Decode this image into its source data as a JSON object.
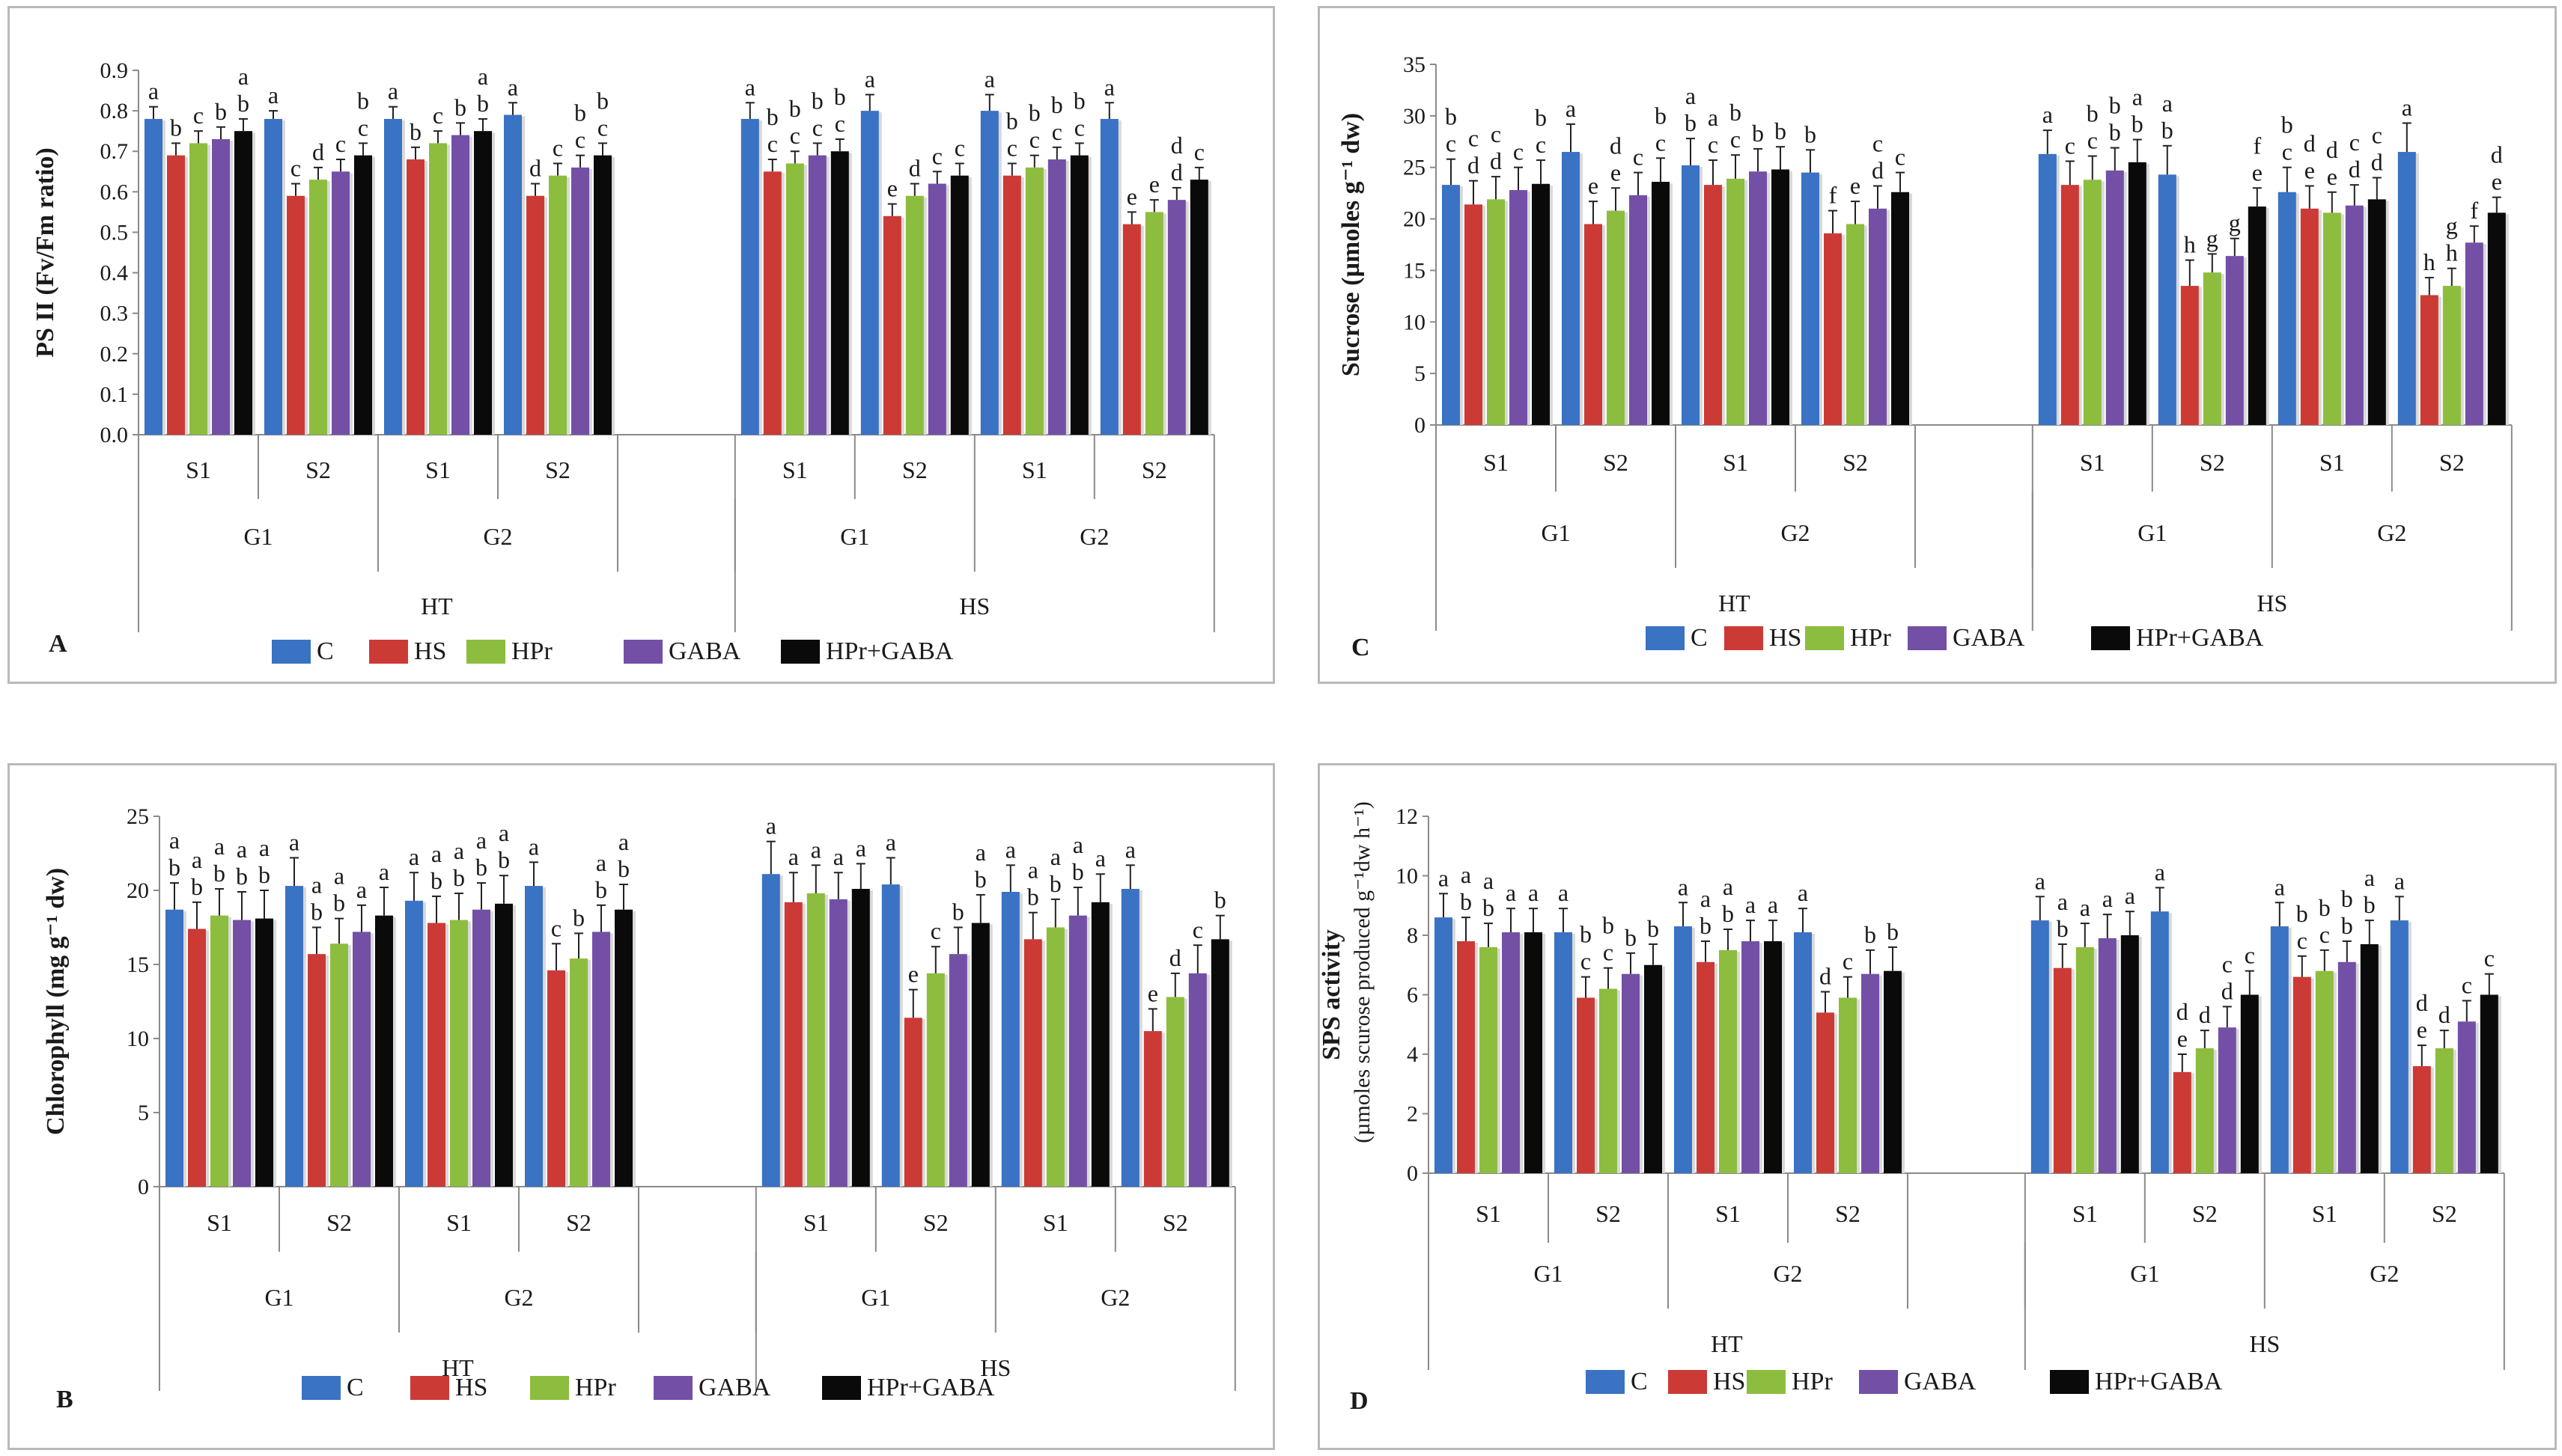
{
  "legend": {
    "labels": [
      "C",
      "HS",
      "HPr",
      "GABA",
      "HPr+GABA"
    ],
    "colors": [
      "#3a72c4",
      "#cc3a36",
      "#8dbd3e",
      "#7350a6",
      "#0a0a0a"
    ]
  },
  "chart_data": [
    {
      "type": "bar",
      "panel_letter": "A",
      "ylabel": "PS II  (Fv/Fm ratio)",
      "ylim": [
        0,
        0.9
      ],
      "ystep": 0.1,
      "ydec": 1,
      "series_names": [
        "C",
        "HS",
        "HPr",
        "GABA",
        "HPr+GABA"
      ],
      "treatments": [
        "HT",
        "HS"
      ],
      "genotypes": [
        "G1",
        "G2",
        "G1",
        "G2"
      ],
      "stages": [
        "S1",
        "S2",
        "S1",
        "S2",
        "S1",
        "S2",
        "S1",
        "S2"
      ],
      "groups": [
        {
          "values": [
            0.78,
            0.69,
            0.72,
            0.73,
            0.75
          ],
          "errors": [
            0.03,
            0.03,
            0.03,
            0.03,
            0.03
          ],
          "letters": [
            "a",
            "b",
            "c",
            "b",
            "b"
          ],
          "letters2": [
            "",
            "",
            "",
            "",
            "a"
          ]
        },
        {
          "values": [
            0.78,
            0.59,
            0.63,
            0.65,
            0.69
          ],
          "errors": [
            0.02,
            0.03,
            0.03,
            0.03,
            0.03
          ],
          "letters": [
            "a",
            "c",
            "d",
            "c",
            "c"
          ],
          "letters2": [
            "",
            "",
            "",
            "",
            "b"
          ]
        },
        {
          "values": [
            0.78,
            0.68,
            0.72,
            0.74,
            0.75
          ],
          "errors": [
            0.03,
            0.03,
            0.03,
            0.03,
            0.03
          ],
          "letters": [
            "a",
            "b",
            "c",
            "b",
            "b"
          ],
          "letters2": [
            "",
            "",
            "",
            "",
            "a"
          ]
        },
        {
          "values": [
            0.79,
            0.59,
            0.64,
            0.66,
            0.69
          ],
          "errors": [
            0.03,
            0.03,
            0.03,
            0.03,
            0.03
          ],
          "letters": [
            "a",
            "d",
            "c",
            "c",
            "c"
          ],
          "letters2": [
            "",
            "",
            "",
            "b",
            "b"
          ]
        },
        {
          "values": [
            0.78,
            0.65,
            0.67,
            0.69,
            0.7
          ],
          "errors": [
            0.04,
            0.03,
            0.03,
            0.03,
            0.03
          ],
          "letters": [
            "a",
            "c",
            "c",
            "c",
            "c"
          ],
          "letters2": [
            "",
            "b",
            "b",
            "b",
            "b"
          ]
        },
        {
          "values": [
            0.8,
            0.54,
            0.59,
            0.62,
            0.64
          ],
          "errors": [
            0.04,
            0.03,
            0.03,
            0.03,
            0.03
          ],
          "letters": [
            "a",
            "e",
            "d",
            "c",
            "c"
          ],
          "letters2": [
            "",
            "",
            "",
            "",
            ""
          ]
        },
        {
          "values": [
            0.8,
            0.64,
            0.66,
            0.68,
            0.69
          ],
          "errors": [
            0.04,
            0.03,
            0.03,
            0.03,
            0.03
          ],
          "letters": [
            "a",
            "c",
            "c",
            "c",
            "c"
          ],
          "letters2": [
            "",
            "b",
            "b",
            "b",
            "b"
          ]
        },
        {
          "values": [
            0.78,
            0.52,
            0.55,
            0.58,
            0.63
          ],
          "errors": [
            0.04,
            0.03,
            0.03,
            0.03,
            0.03
          ],
          "letters": [
            "a",
            "e",
            "e",
            "d",
            "c"
          ],
          "letters2": [
            "",
            "",
            "",
            "d",
            ""
          ]
        }
      ]
    },
    {
      "type": "bar",
      "panel_letter": "C",
      "ylabel": "Sucrose (µmoles g⁻¹ dw)",
      "ylim": [
        0,
        35
      ],
      "ystep": 5,
      "ydec": 0,
      "series_names": [
        "C",
        "HS",
        "HPr",
        "GABA",
        "HPr+GABA"
      ],
      "treatments": [
        "HT",
        "HS"
      ],
      "genotypes": [
        "G1",
        "G2",
        "G1",
        "G2"
      ],
      "stages": [
        "S1",
        "S2",
        "S1",
        "S2",
        "S1",
        "S2",
        "S1",
        "S2"
      ],
      "groups": [
        {
          "values": [
            23.3,
            21.4,
            21.9,
            22.8,
            23.4
          ],
          "errors": [
            2.5,
            2.3,
            2.2,
            2.2,
            2.3
          ],
          "letters": [
            "c",
            "d",
            "d",
            "c",
            "c"
          ],
          "letters2": [
            "b",
            "c",
            "c",
            "",
            "b"
          ]
        },
        {
          "values": [
            26.5,
            19.5,
            20.8,
            22.3,
            23.6
          ],
          "errors": [
            2.7,
            2.2,
            2.2,
            2.2,
            2.3
          ],
          "letters": [
            "a",
            "e",
            "e",
            "c",
            "c"
          ],
          "letters2": [
            "",
            "",
            "d",
            "",
            "b"
          ]
        },
        {
          "values": [
            25.2,
            23.3,
            23.9,
            24.6,
            24.8
          ],
          "errors": [
            2.6,
            2.4,
            2.3,
            2.2,
            2.2
          ],
          "letters": [
            "b",
            "c",
            "c",
            "b",
            "b"
          ],
          "letters2": [
            "a",
            "a",
            "b",
            "",
            ""
          ]
        },
        {
          "values": [
            24.5,
            18.6,
            19.5,
            21.0,
            22.6
          ],
          "errors": [
            2.2,
            2.2,
            2.2,
            2.2,
            1.9
          ],
          "letters": [
            "b",
            "f",
            "e",
            "d",
            "c"
          ],
          "letters2": [
            "",
            "",
            "",
            "c",
            ""
          ]
        },
        {
          "values": [
            26.3,
            23.3,
            23.8,
            24.7,
            25.5
          ],
          "errors": [
            2.3,
            2.3,
            2.3,
            2.2,
            2.2
          ],
          "letters": [
            "a",
            "c",
            "c",
            "b",
            "b"
          ],
          "letters2": [
            "",
            "",
            "b",
            "b",
            "a"
          ]
        },
        {
          "values": [
            24.3,
            13.5,
            14.8,
            16.4,
            21.2
          ],
          "errors": [
            2.8,
            2.5,
            1.8,
            1.7,
            1.8
          ],
          "letters": [
            "b",
            "h",
            "g",
            "g",
            "e"
          ],
          "letters2": [
            "a",
            "",
            "",
            "",
            "f"
          ]
        },
        {
          "values": [
            22.6,
            21.0,
            20.6,
            21.3,
            21.9
          ],
          "errors": [
            2.4,
            2.2,
            2.0,
            2.0,
            2.1
          ],
          "letters": [
            "c",
            "e",
            "e",
            "d",
            "d"
          ],
          "letters2": [
            "b",
            "d",
            "d",
            "c",
            "c"
          ]
        },
        {
          "values": [
            26.5,
            12.6,
            13.5,
            17.7,
            20.6
          ],
          "errors": [
            2.8,
            1.7,
            1.7,
            1.6,
            1.5
          ],
          "letters": [
            "a",
            "h",
            "h",
            "f",
            "e"
          ],
          "letters2": [
            "",
            "",
            "g",
            "",
            "d"
          ]
        }
      ]
    },
    {
      "type": "bar",
      "panel_letter": "B",
      "ylabel": "Chlorophyll (mg g⁻¹ dw)",
      "ylim": [
        0,
        25
      ],
      "ystep": 5,
      "ydec": 0,
      "series_names": [
        "C",
        "HS",
        "HPr",
        "GABA",
        "HPr+GABA"
      ],
      "treatments": [
        "HT",
        "HS"
      ],
      "genotypes": [
        "G1",
        "G2",
        "G1",
        "G2"
      ],
      "stages": [
        "S1",
        "S2",
        "S1",
        "S2",
        "S1",
        "S2",
        "S1",
        "S2"
      ],
      "groups": [
        {
          "values": [
            18.7,
            17.4,
            18.3,
            18.0,
            18.1
          ],
          "errors": [
            1.8,
            1.8,
            1.8,
            1.9,
            1.9
          ],
          "letters": [
            "b",
            "b",
            "b",
            "b",
            "b"
          ],
          "letters2": [
            "a",
            "a",
            "a",
            "a",
            "a"
          ]
        },
        {
          "values": [
            20.3,
            15.7,
            16.4,
            17.2,
            18.3
          ],
          "errors": [
            1.9,
            1.8,
            1.7,
            1.8,
            1.9
          ],
          "letters": [
            "a",
            "b",
            "b",
            "a",
            "a"
          ],
          "letters2": [
            "",
            "a",
            "a",
            "",
            ""
          ]
        },
        {
          "values": [
            19.3,
            17.8,
            18.0,
            18.7,
            19.1
          ],
          "errors": [
            1.9,
            1.8,
            1.8,
            1.8,
            1.9
          ],
          "letters": [
            "a",
            "b",
            "b",
            "b",
            "b"
          ],
          "letters2": [
            "",
            "a",
            "a",
            "a",
            "a"
          ]
        },
        {
          "values": [
            20.3,
            14.6,
            15.4,
            17.2,
            18.7
          ],
          "errors": [
            1.6,
            1.8,
            1.7,
            1.8,
            1.7
          ],
          "letters": [
            "a",
            "c",
            "b",
            "b",
            "b"
          ],
          "letters2": [
            "",
            "",
            "",
            "a",
            "a"
          ]
        },
        {
          "values": [
            21.1,
            19.2,
            19.8,
            19.4,
            20.1
          ],
          "errors": [
            2.2,
            2.0,
            1.9,
            1.8,
            1.7
          ],
          "letters": [
            "a",
            "a",
            "a",
            "a",
            "a"
          ],
          "letters2": [
            "",
            "",
            "",
            "",
            ""
          ]
        },
        {
          "values": [
            20.4,
            11.4,
            14.4,
            15.7,
            17.8
          ],
          "errors": [
            1.8,
            1.9,
            1.8,
            1.8,
            1.9
          ],
          "letters": [
            "a",
            "e",
            "c",
            "b",
            "b"
          ],
          "letters2": [
            "",
            "",
            "",
            "",
            "a"
          ]
        },
        {
          "values": [
            19.9,
            16.7,
            17.5,
            18.3,
            19.2
          ],
          "errors": [
            1.8,
            1.8,
            1.9,
            1.9,
            1.9
          ],
          "letters": [
            "a",
            "b",
            "b",
            "b",
            "a"
          ],
          "letters2": [
            "",
            "a",
            "a",
            "a",
            ""
          ]
        },
        {
          "values": [
            20.1,
            10.5,
            12.8,
            14.4,
            16.7
          ],
          "errors": [
            1.6,
            1.5,
            1.6,
            1.9,
            1.6
          ],
          "letters": [
            "a",
            "e",
            "d",
            "c",
            "b"
          ],
          "letters2": [
            "",
            "",
            "",
            "",
            ""
          ]
        }
      ]
    },
    {
      "type": "bar",
      "panel_letter": "D",
      "ylabel": "SPS activity",
      "ylabel2": "(µmoles  scurose  produced  g⁻¹dw h⁻¹)",
      "ylim": [
        0,
        12
      ],
      "ystep": 2,
      "ydec": 0,
      "series_names": [
        "C",
        "HS",
        "HPr",
        "GABA",
        "HPr+GABA"
      ],
      "treatments": [
        "HT",
        "HS"
      ],
      "genotypes": [
        "G1",
        "G2",
        "G1",
        "G2"
      ],
      "stages": [
        "S1",
        "S2",
        "S1",
        "S2",
        "S1",
        "S2",
        "S1",
        "S2"
      ],
      "groups": [
        {
          "values": [
            8.6,
            7.8,
            7.6,
            8.1,
            8.1
          ],
          "errors": [
            0.8,
            0.8,
            0.8,
            0.8,
            0.8
          ],
          "letters": [
            "a",
            "b",
            "b",
            "a",
            "a"
          ],
          "letters2": [
            "",
            "a",
            "a",
            "",
            ""
          ]
        },
        {
          "values": [
            8.1,
            5.9,
            6.2,
            6.7,
            7.0
          ],
          "errors": [
            0.8,
            0.7,
            0.7,
            0.7,
            0.7
          ],
          "letters": [
            "a",
            "c",
            "c",
            "b",
            "b"
          ],
          "letters2": [
            "",
            "b",
            "b",
            "",
            ""
          ]
        },
        {
          "values": [
            8.3,
            7.1,
            7.5,
            7.8,
            7.8
          ],
          "errors": [
            0.8,
            0.7,
            0.7,
            0.7,
            0.7
          ],
          "letters": [
            "a",
            "b",
            "b",
            "a",
            "a"
          ],
          "letters2": [
            "",
            "a",
            "a",
            "",
            ""
          ]
        },
        {
          "values": [
            8.1,
            5.4,
            5.9,
            6.7,
            6.8
          ],
          "errors": [
            0.8,
            0.7,
            0.7,
            0.8,
            0.8
          ],
          "letters": [
            "a",
            "d",
            "c",
            "b",
            "b"
          ],
          "letters2": [
            "",
            "",
            "",
            "",
            ""
          ]
        },
        {
          "values": [
            8.5,
            6.9,
            7.6,
            7.9,
            8.0
          ],
          "errors": [
            0.8,
            0.8,
            0.8,
            0.8,
            0.8
          ],
          "letters": [
            "a",
            "b",
            "a",
            "a",
            "a"
          ],
          "letters2": [
            "",
            "a",
            "",
            "",
            ""
          ]
        },
        {
          "values": [
            8.8,
            3.4,
            4.2,
            4.9,
            6.0
          ],
          "errors": [
            0.8,
            0.6,
            0.6,
            0.7,
            0.8
          ],
          "letters": [
            "a",
            "e",
            "d",
            "d",
            "c"
          ],
          "letters2": [
            "",
            "d",
            "",
            "c",
            ""
          ]
        },
        {
          "values": [
            8.3,
            6.6,
            6.8,
            7.1,
            7.7
          ],
          "errors": [
            0.8,
            0.7,
            0.7,
            0.7,
            0.8
          ],
          "letters": [
            "a",
            "c",
            "c",
            "b",
            "b"
          ],
          "letters2": [
            "",
            "b",
            "b",
            "b",
            "a"
          ]
        },
        {
          "values": [
            8.5,
            3.6,
            4.2,
            5.1,
            6.0
          ],
          "errors": [
            0.8,
            0.7,
            0.6,
            0.7,
            0.7
          ],
          "letters": [
            "a",
            "e",
            "d",
            "c",
            "c"
          ],
          "letters2": [
            "",
            "d",
            "",
            "",
            ""
          ]
        }
      ]
    }
  ]
}
